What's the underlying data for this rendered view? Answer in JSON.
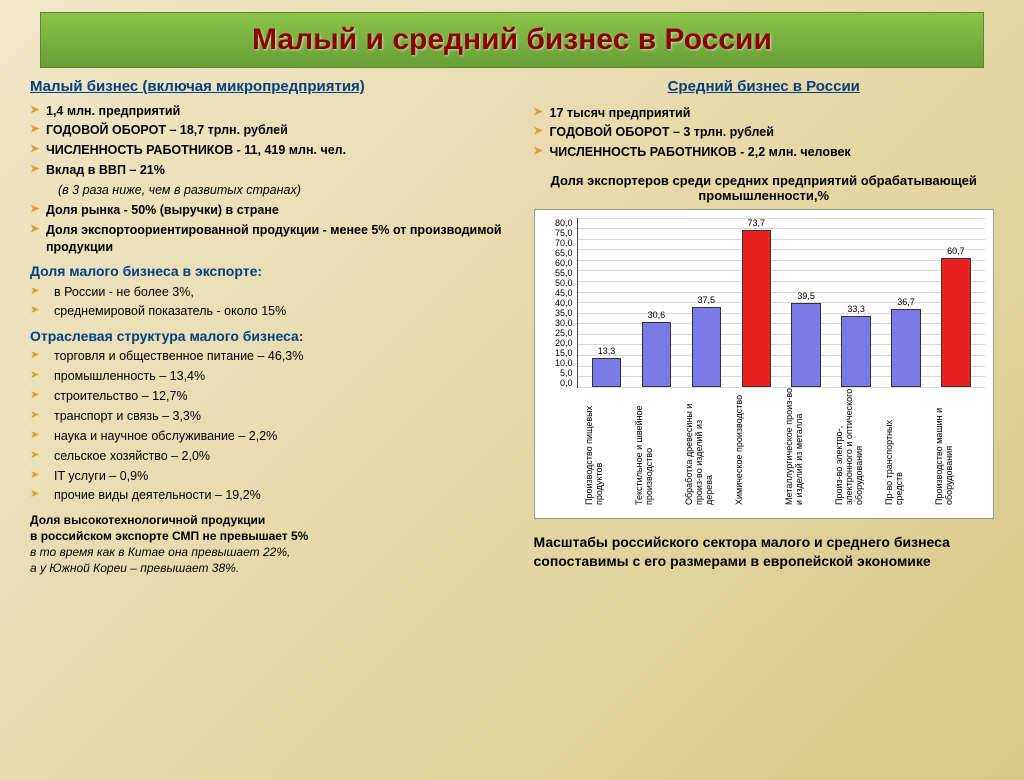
{
  "title": "Малый и средний бизнес в России",
  "left": {
    "heading": "Малый бизнес (включая микропредприятия)",
    "bullets": [
      "1,4  млн. предприятий",
      "ГОДОВОЙ ОБОРОТ – 18,7 трлн.  рублей",
      "ЧИСЛЕННОСТЬ РАБОТНИКОВ - 11, 419 млн. чел.",
      "Вклад в ВВП – 21%"
    ],
    "bullets_sub": "(в 3 раза ниже, чем в развитых странах)",
    "bullets2": [
      "Доля рынка -  50% (выручки) в стране",
      "Доля экспортоориентированной продукции - менее 5% от производимой продукции"
    ],
    "export_title": "Доля малого бизнеса в экспорте:",
    "export_items": [
      "в России - не более 3%,",
      "среднемировой показатель - около 15%"
    ],
    "sector_title": "Отраслевая структура малого бизнеса:",
    "sector_items": [
      "торговля и общественное питание – 46,3%",
      "промышленность – 13,4%",
      "строительство – 12,7%",
      "транспорт и связь – 3,3%",
      "наука и научное обслуживание – 2,2%",
      "сельское хозяйство – 2,0%",
      "IT услуги  – 0,9%",
      "прочие виды деятельности – 19,2%"
    ],
    "footnote_bold1": "Доля  высокотехнологичной продукции",
    "footnote_bold2": "в российском экспорте СМП не превышает 5%",
    "footnote_ital1": "в то время как в Китае она превышает 22%,",
    "footnote_ital2": "а у Южной Кореи – превышает 38%."
  },
  "right": {
    "heading": "Средний бизнес в России",
    "bullets": [
      "17 тысяч предприятий",
      "ГОДОВОЙ ОБОРОТ – 3 трлн. рублей",
      "ЧИСЛЕННОСТЬ РАБОТНИКОВ - 2,2 млн. человек"
    ],
    "chart_title": "Доля экспортеров среди средних предприятий обрабатывающей промышленности,%",
    "summary": "Масштабы российского сектора малого и среднего бизнеса сопоставимы с его размерами в европейской экономике"
  },
  "chart": {
    "type": "bar",
    "ymax": 80,
    "ytick_step": 5,
    "yticks": [
      "80,0",
      "75,0",
      "70,0",
      "65,0",
      "60,0",
      "55,0",
      "50,0",
      "45,0",
      "40,0",
      "35,0",
      "30,0",
      "25,0",
      "20,0",
      "15,0",
      "10,0",
      "5,0",
      "0,0"
    ],
    "background_color": "#ffffff",
    "grid_color": "#d8d8d8",
    "bar_border": "#333333",
    "colors": {
      "normal": "#7a7ae8",
      "highlight": "#e82020"
    },
    "bars": [
      {
        "label": "Производство пищевых продуктов",
        "value": 13.3,
        "display": "13,3",
        "highlight": false
      },
      {
        "label": "Текстильное и швейное производство",
        "value": 30.6,
        "display": "30,6",
        "highlight": false
      },
      {
        "label": "Обработка древесины и произ-во изделий из дерева",
        "value": 37.5,
        "display": "37,5",
        "highlight": false
      },
      {
        "label": "Химическое производство",
        "value": 73.7,
        "display": "73,7",
        "highlight": true
      },
      {
        "label": "Металлургическое произ-во и изделий из металла",
        "value": 39.5,
        "display": "39,5",
        "highlight": false
      },
      {
        "label": "Произ-во электро-, электронного и оптического оборудования",
        "value": 33.3,
        "display": "33,3",
        "highlight": false
      },
      {
        "label": "Пр-во транспортных средств",
        "value": 36.7,
        "display": "36,7",
        "highlight": false
      },
      {
        "label": "Производство машин и оборудования",
        "value": 60.7,
        "display": "60,7",
        "highlight": true
      }
    ]
  }
}
